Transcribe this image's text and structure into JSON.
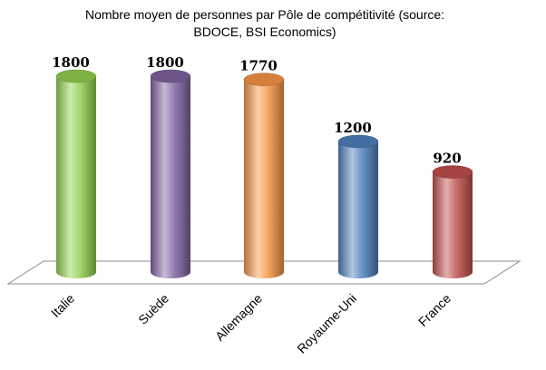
{
  "chart_data": {
    "type": "bar",
    "title_lines": [
      "Nombre moyen de personnes par Pôle de compétitivité (source:",
      "BDOCE, BSI Economics)"
    ],
    "categories": [
      "Italie",
      "Suède",
      "Allemagne",
      "Royaume-Uni",
      "France"
    ],
    "values": [
      1800,
      1800,
      1770,
      1200,
      920
    ],
    "ylim": [
      0,
      1800
    ],
    "grid": false,
    "legend": "none",
    "colors": [
      "#92d050",
      "#8064a2",
      "#f79646",
      "#4f81bd",
      "#c0504d"
    ]
  }
}
